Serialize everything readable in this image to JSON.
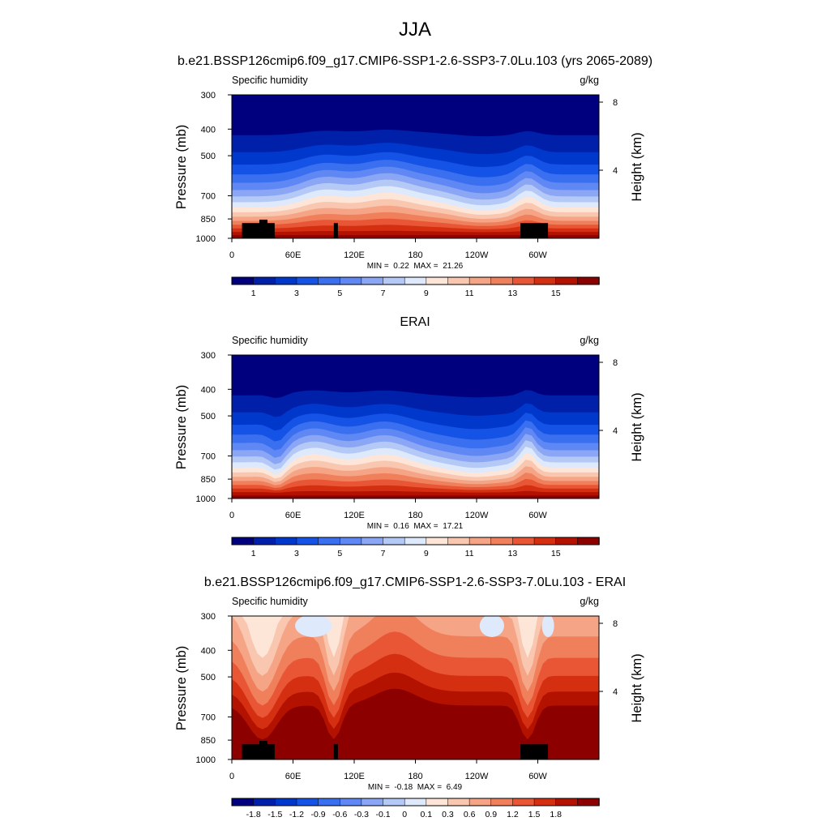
{
  "figure": {
    "title": "JJA"
  },
  "colors": {
    "abs_levels": [
      "#00007f",
      "#0020aa",
      "#0038cc",
      "#1453e6",
      "#3a6ff0",
      "#6088f5",
      "#8aa6f4",
      "#b5c9f7",
      "#dee9fc",
      "#fde6d8",
      "#f9c6b0",
      "#f5a585",
      "#f07f5c",
      "#e85635",
      "#d52f12",
      "#b41200",
      "#8c0000"
    ],
    "diff_levels": [
      "#00007f",
      "#0020aa",
      "#0038cc",
      "#1453e6",
      "#3a6ff0",
      "#6088f5",
      "#8aa6f4",
      "#b5c9f7",
      "#dee9fc",
      "#fde6d8",
      "#f9c6b0",
      "#f5a585",
      "#f07f5c",
      "#e85635",
      "#d52f12",
      "#b41200",
      "#8c0000"
    ],
    "terrain": "#000000"
  },
  "chart_data": [
    {
      "type": "heatmap",
      "title": "b.e21.BSSP126cmip6.f09_g17.CMIP6-SSP1-2.6-SSP3-7.0Lu.103 (yrs 2065-2089)",
      "left_label": "Specific humidity",
      "right_label": "g/kg",
      "ylabel": "Pressure (mb)",
      "y2label": "Height (km)",
      "x_ticks": [
        "0",
        "60E",
        "120E",
        "180",
        "120W",
        "60W"
      ],
      "x_tick_lon": [
        0,
        60,
        120,
        180,
        240,
        300
      ],
      "y_ticks": [
        "300",
        "400",
        "500",
        "700",
        "850",
        "1000"
      ],
      "y_tick_p": [
        300,
        400,
        500,
        700,
        850,
        1000
      ],
      "y2_ticks": [
        "8",
        "4"
      ],
      "y2_tick_km": [
        8,
        4
      ],
      "ylim": [
        1000,
        300
      ],
      "xlim": [
        0,
        360
      ],
      "stats_min_label": "MIN =",
      "stats_min": "0.22",
      "stats_max_label": "MAX =",
      "stats_max": "21.26",
      "colorbar_labels": [
        "1",
        "3",
        "5",
        "7",
        "9",
        "11",
        "13",
        "15"
      ],
      "levels": [
        1,
        2,
        3,
        4,
        5,
        6,
        7,
        8,
        9,
        10,
        11,
        12,
        13,
        14,
        15,
        16
      ],
      "terrain": true
    },
    {
      "type": "heatmap",
      "title": "ERAI",
      "left_label": "Specific humidity",
      "right_label": "g/kg",
      "ylabel": "Pressure (mb)",
      "y2label": "Height (km)",
      "x_ticks": [
        "0",
        "60E",
        "120E",
        "180",
        "120W",
        "60W"
      ],
      "x_tick_lon": [
        0,
        60,
        120,
        180,
        240,
        300
      ],
      "y_ticks": [
        "300",
        "400",
        "500",
        "700",
        "850",
        "1000"
      ],
      "y_tick_p": [
        300,
        400,
        500,
        700,
        850,
        1000
      ],
      "y2_ticks": [
        "8",
        "4"
      ],
      "y2_tick_km": [
        8,
        4
      ],
      "ylim": [
        1000,
        300
      ],
      "xlim": [
        0,
        360
      ],
      "stats_min_label": "MIN =",
      "stats_min": "0.16",
      "stats_max_label": "MAX =",
      "stats_max": "17.21",
      "colorbar_labels": [
        "1",
        "3",
        "5",
        "7",
        "9",
        "11",
        "13",
        "15"
      ],
      "levels": [
        1,
        2,
        3,
        4,
        5,
        6,
        7,
        8,
        9,
        10,
        11,
        12,
        13,
        14,
        15,
        16
      ],
      "terrain": false
    },
    {
      "type": "heatmap",
      "title": "b.e21.BSSP126cmip6.f09_g17.CMIP6-SSP1-2.6-SSP3-7.0Lu.103 - ERAI",
      "left_label": "Specific humidity",
      "right_label": "g/kg",
      "ylabel": "Pressure (mb)",
      "y2label": "Height (km)",
      "x_ticks": [
        "0",
        "60E",
        "120E",
        "180",
        "120W",
        "60W"
      ],
      "x_tick_lon": [
        0,
        60,
        120,
        180,
        240,
        300
      ],
      "y_ticks": [
        "300",
        "400",
        "500",
        "700",
        "850",
        "1000"
      ],
      "y_tick_p": [
        300,
        400,
        500,
        700,
        850,
        1000
      ],
      "y2_ticks": [
        "8",
        "4"
      ],
      "y2_tick_km": [
        8,
        4
      ],
      "ylim": [
        1000,
        300
      ],
      "xlim": [
        0,
        360
      ],
      "stats_min_label": "MIN =",
      "stats_min": "-0.18",
      "stats_max_label": "MAX =",
      "stats_max": "6.49",
      "colorbar_labels": [
        "-1.8",
        "-1.5",
        "-1.2",
        "-0.9",
        "-0.6",
        "-0.3",
        "-0.1",
        "0",
        "0.1",
        "0.3",
        "0.6",
        "0.9",
        "1.2",
        "1.5",
        "1.8"
      ],
      "levels": [
        -2.1,
        -1.8,
        -1.5,
        -1.2,
        -0.9,
        -0.6,
        -0.3,
        -0.1,
        0,
        0.1,
        0.3,
        0.6,
        0.9,
        1.2,
        1.5,
        1.8
      ],
      "terrain": true
    }
  ]
}
